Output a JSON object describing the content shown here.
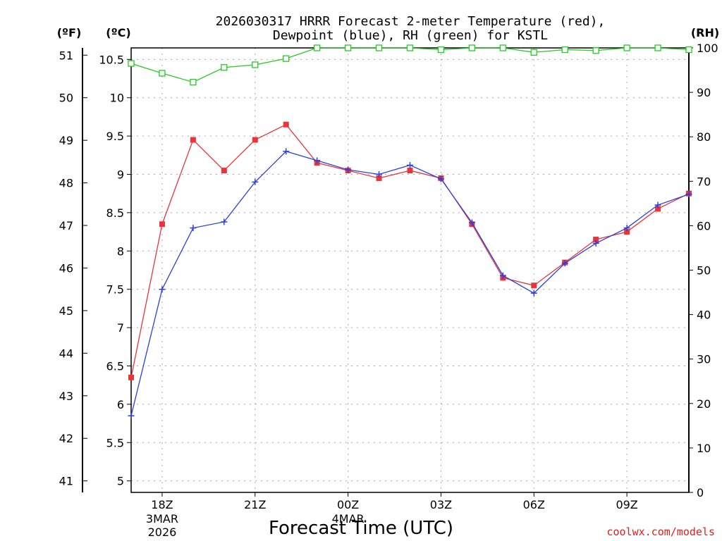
{
  "chart_data": {
    "type": "line",
    "title_line1": "2026030317 HRRR Forecast 2-meter Temperature (red),",
    "title_line2": "Dewpoint (blue), RH (green) for KSTL",
    "xlabel": "Forecast Time (UTC)",
    "credit": "coolwx.com/models",
    "units": {
      "fahrenheit": "(ºF)",
      "celsius": "(ºC)",
      "rh": "(RH)"
    },
    "hours": [
      17,
      18,
      19,
      20,
      21,
      22,
      23,
      24,
      25,
      26,
      27,
      28,
      29,
      30,
      31,
      32,
      33,
      34,
      35
    ],
    "x_ticks": [
      {
        "hour": 18,
        "label": "18Z",
        "sub1": "3MAR",
        "sub2": "2026"
      },
      {
        "hour": 21,
        "label": "21Z",
        "sub1": "",
        "sub2": ""
      },
      {
        "hour": 24,
        "label": "00Z",
        "sub1": "4MAR",
        "sub2": ""
      },
      {
        "hour": 27,
        "label": "03Z",
        "sub1": "",
        "sub2": ""
      },
      {
        "hour": 30,
        "label": "06Z",
        "sub1": "",
        "sub2": ""
      },
      {
        "hour": 33,
        "label": "09Z",
        "sub1": "",
        "sub2": ""
      }
    ],
    "xlim": [
      17,
      35
    ],
    "ylim_c": [
      4.85,
      10.65
    ],
    "c_ticks": [
      "5",
      "5.5",
      "6",
      "6.5",
      "7",
      "7.5",
      "8",
      "8.5",
      "9",
      "9.5",
      "10",
      "10.5"
    ],
    "f_ticks": [
      "41",
      "42",
      "43",
      "44",
      "45",
      "46",
      "47",
      "48",
      "49",
      "50",
      "51"
    ],
    "rh_ticks": [
      "0",
      "10",
      "20",
      "30",
      "40",
      "50",
      "60",
      "70",
      "80",
      "90",
      "100"
    ],
    "colors": {
      "temperature": "#e8353b",
      "dewpoint": "#2b3fe0",
      "rh": "#22cc22"
    },
    "series": [
      {
        "name": "Temperature (C)",
        "marker": "filled-square",
        "values": [
          6.35,
          8.35,
          9.45,
          9.05,
          9.45,
          9.65,
          9.15,
          9.05,
          8.95,
          9.05,
          8.95,
          8.35,
          7.65,
          7.55,
          7.85,
          8.15,
          8.25,
          8.55,
          8.75
        ]
      },
      {
        "name": "Dewpoint (C)",
        "marker": "plus",
        "values": [
          5.85,
          7.5,
          8.3,
          8.38,
          8.9,
          9.3,
          9.18,
          9.06,
          9.0,
          9.12,
          8.94,
          8.37,
          7.68,
          7.45,
          7.84,
          8.1,
          8.3,
          8.6,
          8.74
        ]
      },
      {
        "name": "RH (%)",
        "marker": "open-square",
        "values": [
          96.5,
          94.3,
          92.3,
          95.6,
          96.2,
          97.6,
          100.0,
          100.0,
          100.0,
          100.0,
          99.6,
          100.0,
          100.0,
          99.0,
          99.6,
          99.4,
          100.0,
          100.0,
          99.6
        ]
      }
    ]
  }
}
